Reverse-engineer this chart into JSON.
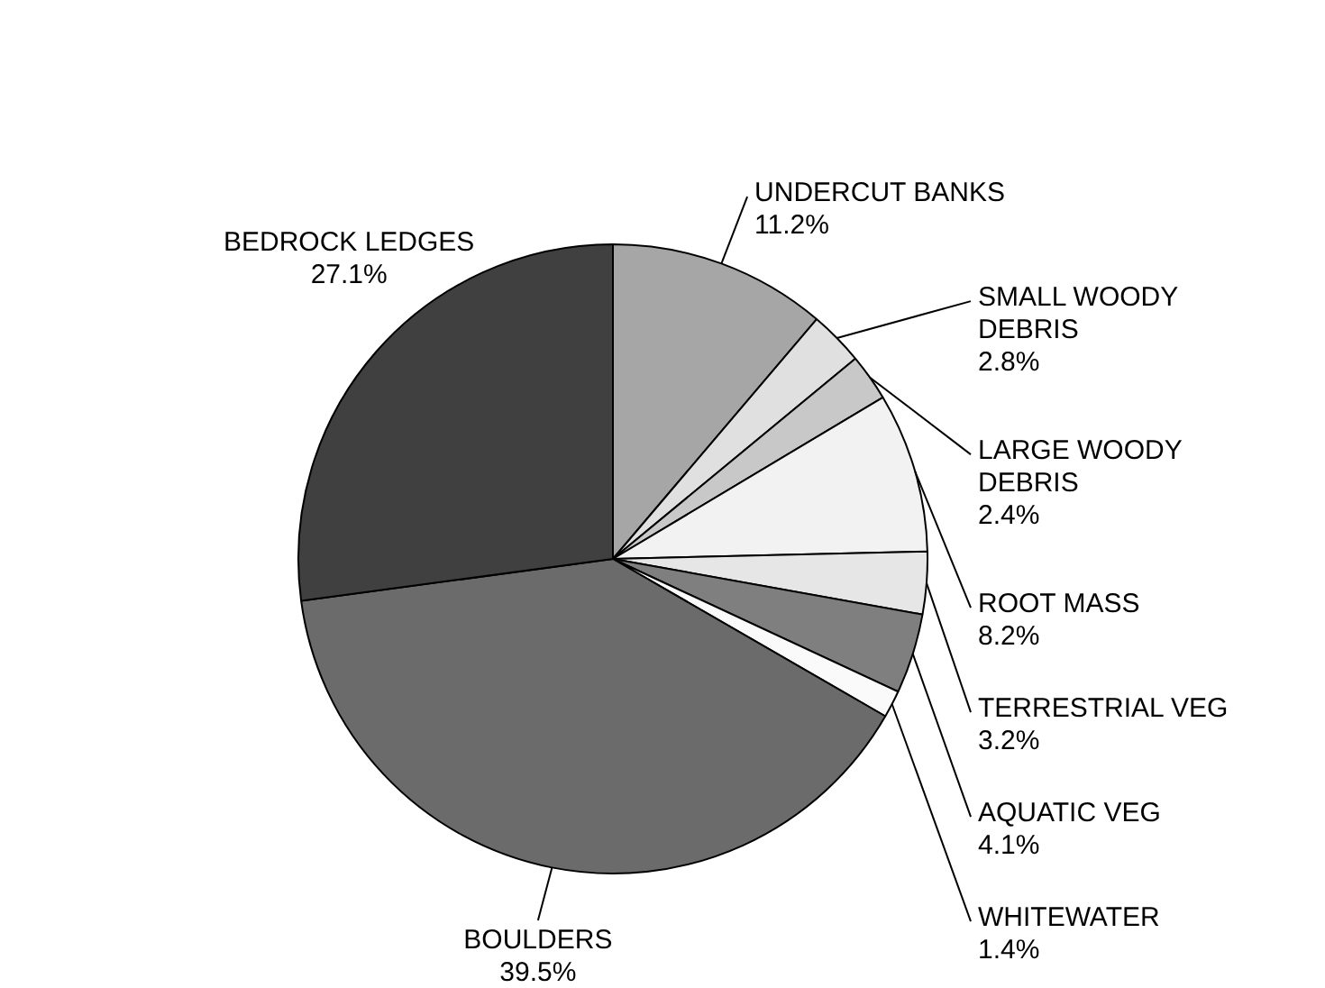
{
  "chart_data": {
    "type": "pie",
    "categories": [
      "UNDERCUT BANKS",
      "SMALL WOODY DEBRIS",
      "LARGE WOODY DEBRIS",
      "ROOT MASS",
      "TERRESTRIAL VEG",
      "AQUATIC VEG",
      "WHITEWATER",
      "BOULDERS",
      "BEDROCK LEDGES"
    ],
    "values": [
      11.2,
      2.8,
      2.4,
      8.2,
      3.2,
      4.1,
      1.4,
      39.5,
      27.1
    ],
    "colors": [
      "#a6a6a6",
      "#e0e0e0",
      "#c8c8c8",
      "#f2f2f2",
      "#e6e6e6",
      "#7f7f7f",
      "#fafafa",
      "#6b6b6b",
      "#404040"
    ],
    "value_labels": [
      "11.2%",
      "2.8%",
      "2.4%",
      "8.2%",
      "3.2%",
      "4.1%",
      "1.4%",
      "39.5%",
      "27.1%"
    ],
    "legend": false
  }
}
